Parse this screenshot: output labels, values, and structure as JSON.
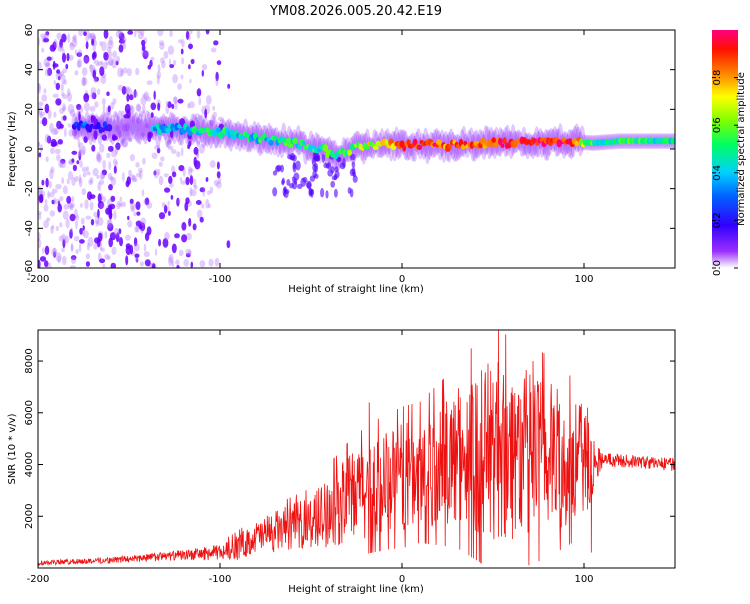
{
  "title": "YM08.2026.005.20.42.E19",
  "colors": {
    "spectrogram_low": "#7a00ff",
    "trace": "#ee1111",
    "frame": "#000000",
    "background": "#ffffff"
  },
  "chart_data": [
    {
      "type": "heatmap",
      "name": "spectrogram",
      "title": "YM08.2026.005.20.42.E19",
      "xlabel": "Height of straight line (km)",
      "ylabel": "Frequency (Hz)",
      "xlim": [
        -200,
        150
      ],
      "ylim": [
        -60,
        60
      ],
      "xticks": [
        -200,
        -100,
        0,
        100
      ],
      "yticks": [
        -60,
        -40,
        -20,
        0,
        20,
        40,
        60
      ],
      "grid": false,
      "colorbar": {
        "label": "Normalized spectral amplitude",
        "range": [
          0,
          1
        ],
        "ticks": [
          0.0,
          0.2,
          0.4,
          0.6,
          0.8
        ],
        "tick_labels": [
          "0.0",
          "0.2",
          "0.4",
          "0.6",
          "0.8"
        ],
        "colormap": [
          "#ffffff",
          "#7a00ff",
          "#0000ff",
          "#00c8ff",
          "#00ff00",
          "#ffff00",
          "#ff8000",
          "#ff0000",
          "#ff0080"
        ]
      },
      "ridge": [
        {
          "x": -180,
          "freq": 12,
          "amp": 0.25
        },
        {
          "x": -165,
          "freq": 11,
          "amp": 0.2
        },
        {
          "x": -135,
          "freq": 10,
          "amp": 0.35
        },
        {
          "x": -120,
          "freq": 10,
          "amp": 0.4
        },
        {
          "x": -105,
          "freq": 9,
          "amp": 0.45
        },
        {
          "x": -90,
          "freq": 7,
          "amp": 0.45
        },
        {
          "x": -75,
          "freq": 5,
          "amp": 0.45
        },
        {
          "x": -60,
          "freq": 3,
          "amp": 0.5
        },
        {
          "x": -45,
          "freq": 0,
          "amp": 0.5
        },
        {
          "x": -35,
          "freq": -3,
          "amp": 0.5
        },
        {
          "x": -25,
          "freq": 1,
          "amp": 0.6
        },
        {
          "x": -10,
          "freq": 2,
          "amp": 0.75
        },
        {
          "x": 10,
          "freq": 2,
          "amp": 0.9
        },
        {
          "x": 30,
          "freq": 2,
          "amp": 0.85
        },
        {
          "x": 50,
          "freq": 3,
          "amp": 0.85
        },
        {
          "x": 70,
          "freq": 3,
          "amp": 0.95
        },
        {
          "x": 90,
          "freq": 4,
          "amp": 0.95
        },
        {
          "x": 105,
          "freq": 3,
          "amp": 0.5
        },
        {
          "x": 120,
          "freq": 4,
          "amp": 0.5
        },
        {
          "x": 150,
          "freq": 4,
          "amp": 0.5
        }
      ]
    },
    {
      "type": "line",
      "name": "snr",
      "xlabel": "Height of straight line (km)",
      "ylabel": "SNR (10 * v/v)",
      "xlim": [
        -200,
        150
      ],
      "ylim": [
        0,
        9200
      ],
      "xticks": [
        -200,
        -100,
        0,
        100
      ],
      "yticks": [
        2000,
        4000,
        6000,
        8000
      ],
      "grid": false,
      "series": [
        {
          "name": "SNR",
          "color": "#ee1111",
          "x": [
            -200,
            -180,
            -160,
            -140,
            -120,
            -100,
            -90,
            -80,
            -70,
            -60,
            -50,
            -40,
            -30,
            -20,
            -10,
            0,
            10,
            20,
            30,
            40,
            50,
            60,
            70,
            80,
            90,
            100,
            105,
            110,
            120,
            130,
            140,
            150
          ],
          "y": [
            200,
            250,
            300,
            400,
            500,
            600,
            800,
            1200,
            1400,
            1600,
            1800,
            2200,
            2600,
            3000,
            3300,
            3500,
            3700,
            4000,
            4300,
            4500,
            4600,
            4500,
            4400,
            4300,
            4200,
            4100,
            4000,
            4200,
            4150,
            4100,
            4050,
            4000
          ],
          "spread": [
            100,
            100,
            120,
            150,
            200,
            300,
            500,
            600,
            800,
            900,
            1000,
            1400,
            1700,
            1900,
            2000,
            2100,
            2100,
            2400,
            2700,
            3200,
            3600,
            3400,
            3300,
            3000,
            2600,
            2200,
            1200,
            300,
            250,
            250,
            250,
            250
          ],
          "peaks": [
            {
              "x": 53,
              "y": 9200
            },
            {
              "x": 72,
              "y": 8000
            },
            {
              "x": -18,
              "y": 6400
            },
            {
              "x": 102,
              "y": 6200
            },
            {
              "x": 104,
              "y": 600
            }
          ]
        }
      ]
    }
  ]
}
